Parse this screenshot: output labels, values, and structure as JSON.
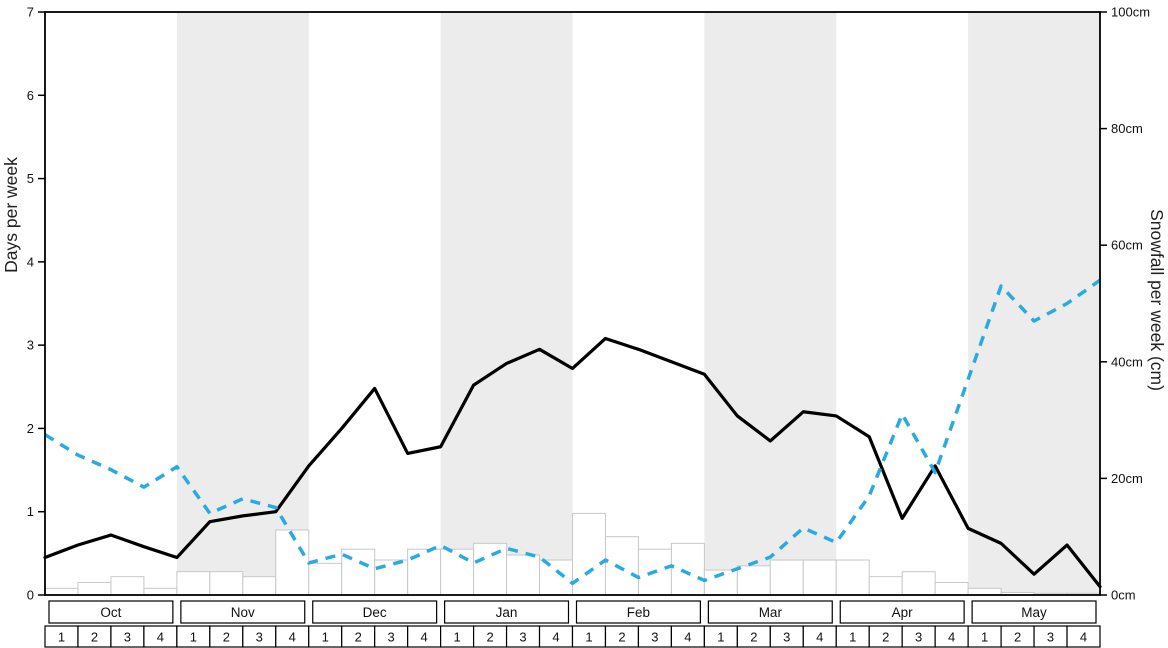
{
  "axes": {
    "left_label": "Days per week",
    "right_label": "Snowfall per week (cm)",
    "left_ticks": [
      0,
      1,
      2,
      3,
      4,
      5,
      6,
      7
    ],
    "right_ticks": [
      0,
      20,
      40,
      60,
      80,
      100
    ],
    "right_tick_labels": [
      "0cm",
      "20cm",
      "40cm",
      "60cm",
      "80cm",
      "100cm"
    ]
  },
  "chart_data": {
    "type": "line",
    "title": "",
    "months": [
      "Oct",
      "Nov",
      "Dec",
      "Jan",
      "Feb",
      "Mar",
      "Apr",
      "May"
    ],
    "week_labels": [
      "1",
      "2",
      "3",
      "4"
    ],
    "left_axis": {
      "label": "Days per week",
      "range": [
        0,
        7
      ]
    },
    "right_axis": {
      "label": "Snowfall per week (cm)",
      "range": [
        0,
        100
      ]
    },
    "band_color": "#ececec",
    "legend": "none",
    "grid": false,
    "series": [
      {
        "name": "days-per-week",
        "type": "line",
        "line_style": "solid",
        "color": "#000000",
        "axis": "left",
        "values": [
          0.45,
          0.6,
          0.72,
          0.58,
          0.45,
          0.88,
          0.95,
          1.0,
          1.55,
          2.0,
          2.48,
          1.7,
          1.78,
          2.52,
          2.78,
          2.95,
          2.72,
          3.08,
          2.95,
          2.8,
          2.65,
          2.15,
          1.85,
          2.2,
          2.15,
          1.9,
          0.92,
          1.55,
          0.8,
          0.62,
          0.25,
          0.6,
          0.1
        ]
      },
      {
        "name": "snowfall-per-week-cm",
        "type": "line",
        "line_style": "dashed",
        "color": "#29abe2",
        "axis": "right",
        "values": [
          27.5,
          24,
          21.5,
          18.5,
          22,
          14,
          16.5,
          15,
          5.5,
          7,
          4.5,
          6,
          8.5,
          5.5,
          8,
          6.5,
          2,
          6,
          3,
          5,
          2.5,
          4.5,
          6.5,
          11.5,
          9,
          17,
          31,
          21,
          37,
          53,
          47,
          50,
          54
        ]
      },
      {
        "name": "weekly-bars",
        "type": "bar",
        "color": "#ffffff",
        "border_color": "#c8c8c8",
        "axis": "left",
        "values": [
          0.08,
          0.15,
          0.22,
          0.08,
          0.28,
          0.28,
          0.22,
          0.78,
          0.38,
          0.55,
          0.42,
          0.55,
          0.55,
          0.62,
          0.48,
          0.42,
          0.98,
          0.7,
          0.55,
          0.62,
          0.3,
          0.35,
          0.42,
          0.42,
          0.42,
          0.22,
          0.28,
          0.15,
          0.08,
          0.03,
          0.02,
          0.02
        ]
      }
    ]
  }
}
